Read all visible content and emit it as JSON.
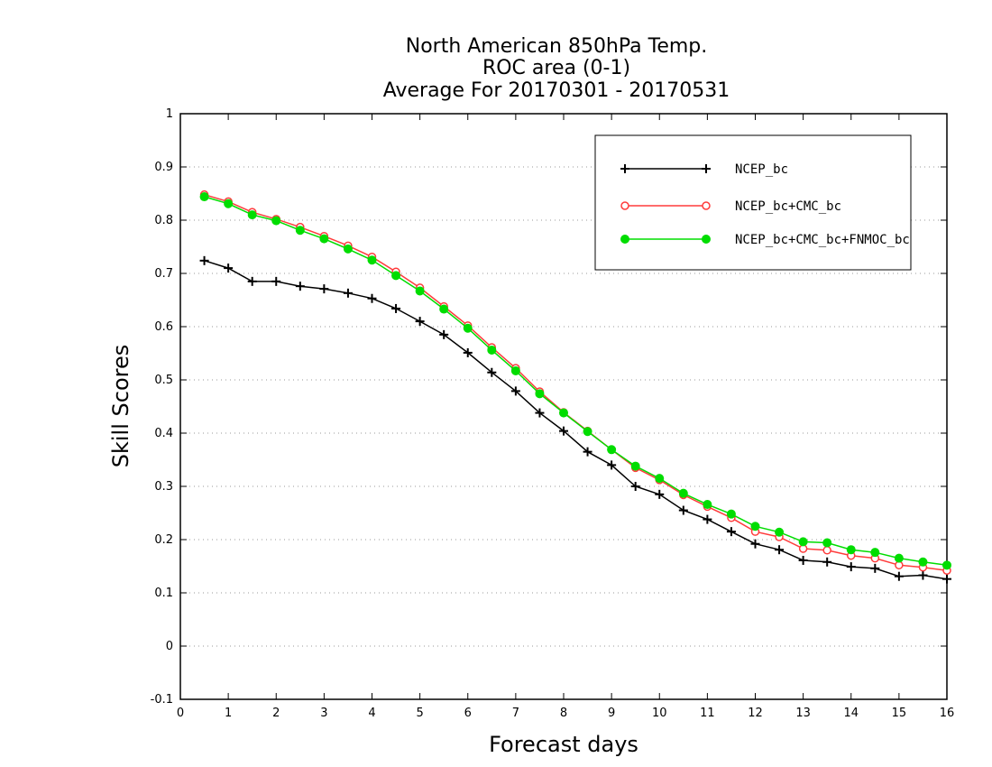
{
  "chart_data": {
    "type": "line",
    "title": [
      "North American 850hPa Temp.",
      "ROC area (0-1)",
      "Average For 20170301 - 20170531"
    ],
    "xlabel": "Forecast days",
    "ylabel": "Skill Scores",
    "xlim": [
      0,
      16
    ],
    "ylim": [
      -0.1,
      1
    ],
    "xticks": [
      0,
      1,
      2,
      3,
      4,
      5,
      6,
      7,
      8,
      9,
      10,
      11,
      12,
      13,
      14,
      15,
      16
    ],
    "yticks": [
      -0.1,
      0,
      0.1,
      0.2,
      0.3,
      0.4,
      0.5,
      0.6,
      0.7,
      0.8,
      0.9,
      1
    ],
    "ytick_labels": [
      "-0.1",
      "0",
      "0.1",
      "0.2",
      "0.3",
      "0.4",
      "0.5",
      "0.6",
      "0.7",
      "0.8",
      "0.9",
      "1"
    ],
    "grid": "horizontal dotted",
    "legend_position": "top-right",
    "x": [
      0.5,
      1,
      1.5,
      2,
      2.5,
      3,
      3.5,
      4,
      4.5,
      5,
      5.5,
      6,
      6.5,
      7,
      7.5,
      8,
      8.5,
      9,
      9.5,
      10,
      10.5,
      11,
      11.5,
      12,
      12.5,
      13,
      13.5,
      14,
      14.5,
      15,
      15.5,
      16
    ],
    "series": [
      {
        "name": "NCEP_bc",
        "color": "#000000",
        "marker": "plus",
        "values": [
          0.724,
          0.71,
          0.685,
          0.685,
          0.676,
          0.671,
          0.663,
          0.653,
          0.634,
          0.61,
          0.585,
          0.551,
          0.514,
          0.479,
          0.438,
          0.404,
          0.365,
          0.34,
          0.3,
          0.285,
          0.255,
          0.238,
          0.215,
          0.192,
          0.181,
          0.161,
          0.158,
          0.149,
          0.146,
          0.131,
          0.133,
          0.126
        ]
      },
      {
        "name": "NCEP_bc+CMC_bc",
        "color": "#ff3b3b",
        "marker": "open-circle",
        "values": [
          0.848,
          0.835,
          0.815,
          0.802,
          0.787,
          0.77,
          0.752,
          0.731,
          0.703,
          0.673,
          0.638,
          0.602,
          0.561,
          0.522,
          0.478,
          0.439,
          0.404,
          0.369,
          0.335,
          0.312,
          0.284,
          0.262,
          0.241,
          0.215,
          0.205,
          0.183,
          0.18,
          0.17,
          0.165,
          0.152,
          0.148,
          0.142
        ]
      },
      {
        "name": "NCEP_bc+CMC_bc+FNMOC_bc",
        "color": "#00dd00",
        "marker": "filled-circle",
        "values": [
          0.844,
          0.831,
          0.81,
          0.799,
          0.781,
          0.765,
          0.746,
          0.725,
          0.696,
          0.667,
          0.633,
          0.597,
          0.556,
          0.517,
          0.474,
          0.438,
          0.403,
          0.369,
          0.338,
          0.315,
          0.287,
          0.266,
          0.248,
          0.225,
          0.214,
          0.196,
          0.194,
          0.181,
          0.176,
          0.165,
          0.158,
          0.152
        ]
      }
    ]
  }
}
